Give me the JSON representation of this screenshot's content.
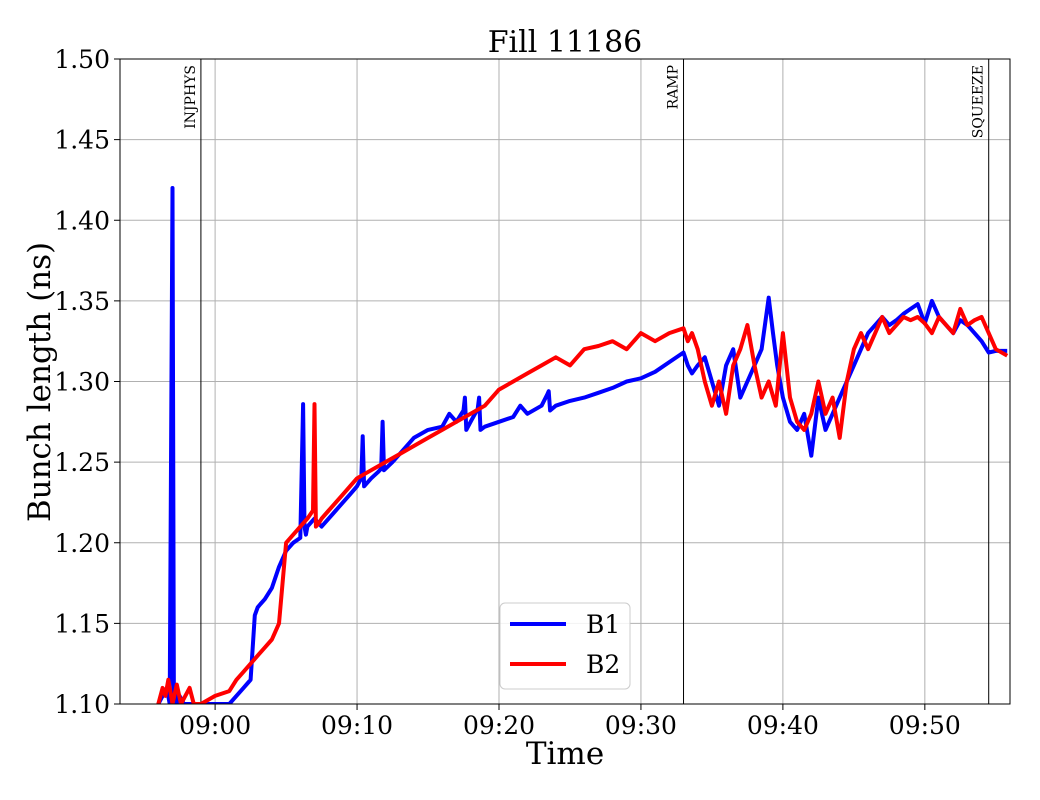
{
  "chart_data": {
    "type": "line",
    "title": "Fill 11186",
    "xlabel": "Time",
    "ylabel": "Bunch length (ns)",
    "x_unit": "minutes after 08:55",
    "xlim": [
      -1.7,
      61
    ],
    "ylim": [
      1.1,
      1.5
    ],
    "grid": true,
    "legend_position": "bottom-center",
    "x_ticks": [
      {
        "value": 5,
        "label": "09:00"
      },
      {
        "value": 15,
        "label": "09:10"
      },
      {
        "value": 25,
        "label": "09:20"
      },
      {
        "value": 35,
        "label": "09:30"
      },
      {
        "value": 45,
        "label": "09:40"
      },
      {
        "value": 55,
        "label": "09:50"
      }
    ],
    "y_ticks": [
      {
        "value": 1.1,
        "label": "1.10"
      },
      {
        "value": 1.15,
        "label": "1.15"
      },
      {
        "value": 1.2,
        "label": "1.20"
      },
      {
        "value": 1.25,
        "label": "1.25"
      },
      {
        "value": 1.3,
        "label": "1.30"
      },
      {
        "value": 1.35,
        "label": "1.35"
      },
      {
        "value": 1.4,
        "label": "1.40"
      },
      {
        "value": 1.45,
        "label": "1.45"
      },
      {
        "value": 1.5,
        "label": "1.50"
      }
    ],
    "events": [
      {
        "label": "INJPHYS",
        "x": 4.0
      },
      {
        "label": "RAMP",
        "x": 38.0
      },
      {
        "label": "SQUEEZE",
        "x": 59.5
      }
    ],
    "series": [
      {
        "name": "B1",
        "color": "#0000ff",
        "x": [
          1.0,
          1.3,
          1.6,
          1.8,
          2.0,
          2.1,
          2.2,
          2.3,
          2.5,
          2.8,
          3.0,
          3.5,
          4.5,
          5.5,
          6.0,
          6.5,
          7.0,
          7.3,
          7.5,
          7.8,
          8.0,
          8.2,
          8.5,
          9.0,
          9.5,
          10.0,
          10.5,
          11.0,
          11.2,
          11.3,
          11.4,
          11.5,
          12.0,
          12.5,
          13.0,
          13.5,
          14.0,
          14.5,
          15.0,
          15.3,
          15.4,
          15.5,
          16.0,
          16.5,
          16.7,
          16.8,
          16.9,
          17.5,
          18.0,
          19.0,
          20.0,
          21.0,
          21.5,
          22.0,
          22.5,
          22.6,
          22.7,
          23.0,
          23.5,
          23.6,
          23.7,
          24.0,
          25.0,
          26.0,
          26.5,
          27.0,
          28.0,
          28.4,
          28.5,
          28.6,
          29.0,
          30.0,
          31.0,
          32.0,
          33.0,
          34.0,
          35.0,
          36.0,
          37.0,
          38.0,
          38.3,
          38.6,
          39.0,
          39.5,
          40.0,
          40.5,
          41.0,
          41.5,
          42.0,
          42.5,
          43.0,
          43.5,
          44.0,
          44.3,
          44.6,
          45.0,
          45.5,
          46.0,
          46.5,
          47.0,
          47.5,
          48.0,
          48.5,
          49.0,
          49.5,
          50.0,
          50.5,
          51.0,
          51.5,
          52.0,
          52.5,
          53.0,
          53.5,
          54.0,
          54.5,
          55.0,
          55.5,
          56.0,
          56.5,
          57.0,
          57.5,
          58.0,
          58.5,
          59.0,
          59.5,
          60.0,
          60.8
        ],
        "y": [
          1.1,
          1.105,
          1.11,
          1.1,
          1.42,
          1.1,
          1.11,
          1.1,
          1.105,
          1.1,
          1.1,
          1.1,
          1.1,
          1.1,
          1.1,
          1.105,
          1.11,
          1.113,
          1.115,
          1.155,
          1.16,
          1.162,
          1.165,
          1.172,
          1.185,
          1.195,
          1.2,
          1.203,
          1.286,
          1.21,
          1.205,
          1.21,
          1.215,
          1.21,
          1.215,
          1.22,
          1.225,
          1.23,
          1.235,
          1.24,
          1.266,
          1.235,
          1.24,
          1.244,
          1.246,
          1.275,
          1.245,
          1.25,
          1.255,
          1.265,
          1.27,
          1.272,
          1.28,
          1.275,
          1.282,
          1.29,
          1.27,
          1.275,
          1.283,
          1.29,
          1.27,
          1.272,
          1.275,
          1.278,
          1.285,
          1.28,
          1.285,
          1.292,
          1.294,
          1.282,
          1.285,
          1.288,
          1.29,
          1.293,
          1.296,
          1.3,
          1.302,
          1.306,
          1.312,
          1.318,
          1.31,
          1.305,
          1.31,
          1.315,
          1.3,
          1.285,
          1.31,
          1.32,
          1.29,
          1.3,
          1.31,
          1.32,
          1.352,
          1.33,
          1.31,
          1.29,
          1.275,
          1.27,
          1.28,
          1.254,
          1.29,
          1.27,
          1.28,
          1.29,
          1.3,
          1.31,
          1.32,
          1.33,
          1.335,
          1.34,
          1.335,
          1.338,
          1.342,
          1.345,
          1.348,
          1.336,
          1.35,
          1.34,
          1.335,
          1.33,
          1.338,
          1.335,
          1.33,
          1.325,
          1.318,
          1.319,
          1.319
        ]
      },
      {
        "name": "B2",
        "color": "#ff0000",
        "x": [
          1.0,
          1.3,
          1.5,
          1.7,
          2.0,
          2.3,
          2.6,
          2.9,
          3.2,
          3.5,
          4.0,
          5.0,
          6.0,
          6.5,
          7.0,
          7.5,
          8.0,
          8.5,
          9.0,
          9.5,
          10.0,
          10.5,
          10.8,
          11.0,
          11.5,
          11.9,
          12.0,
          12.1,
          12.3,
          12.5,
          13.0,
          14.0,
          15.0,
          16.0,
          17.0,
          18.0,
          19.0,
          20.0,
          21.0,
          22.0,
          23.0,
          24.0,
          25.0,
          26.0,
          27.0,
          28.0,
          29.0,
          30.0,
          31.0,
          32.0,
          33.0,
          34.0,
          35.0,
          36.0,
          37.0,
          38.0,
          38.3,
          38.6,
          39.0,
          39.5,
          40.0,
          40.5,
          41.0,
          41.5,
          42.0,
          42.5,
          43.0,
          43.5,
          44.0,
          44.5,
          45.0,
          45.5,
          46.0,
          46.5,
          47.0,
          47.5,
          48.0,
          48.5,
          49.0,
          49.5,
          50.0,
          50.5,
          51.0,
          51.5,
          52.0,
          52.5,
          53.0,
          53.5,
          54.0,
          54.5,
          55.0,
          55.5,
          56.0,
          56.5,
          57.0,
          57.5,
          58.0,
          58.5,
          59.0,
          59.5,
          60.0,
          60.8
        ],
        "y": [
          1.1,
          1.11,
          1.105,
          1.115,
          1.1,
          1.112,
          1.1,
          1.105,
          1.11,
          1.1,
          1.1,
          1.105,
          1.108,
          1.115,
          1.12,
          1.125,
          1.13,
          1.135,
          1.14,
          1.15,
          1.2,
          1.205,
          1.208,
          1.21,
          1.215,
          1.22,
          1.286,
          1.21,
          1.212,
          1.215,
          1.22,
          1.23,
          1.24,
          1.245,
          1.25,
          1.255,
          1.26,
          1.265,
          1.27,
          1.275,
          1.28,
          1.285,
          1.295,
          1.3,
          1.305,
          1.31,
          1.315,
          1.31,
          1.32,
          1.322,
          1.325,
          1.32,
          1.33,
          1.325,
          1.33,
          1.333,
          1.325,
          1.33,
          1.32,
          1.3,
          1.285,
          1.3,
          1.28,
          1.31,
          1.32,
          1.335,
          1.31,
          1.29,
          1.3,
          1.285,
          1.33,
          1.29,
          1.275,
          1.27,
          1.28,
          1.3,
          1.28,
          1.29,
          1.265,
          1.3,
          1.32,
          1.33,
          1.32,
          1.33,
          1.34,
          1.33,
          1.335,
          1.34,
          1.338,
          1.34,
          1.336,
          1.33,
          1.34,
          1.335,
          1.33,
          1.345,
          1.335,
          1.338,
          1.34,
          1.33,
          1.32,
          1.316
        ]
      }
    ]
  }
}
